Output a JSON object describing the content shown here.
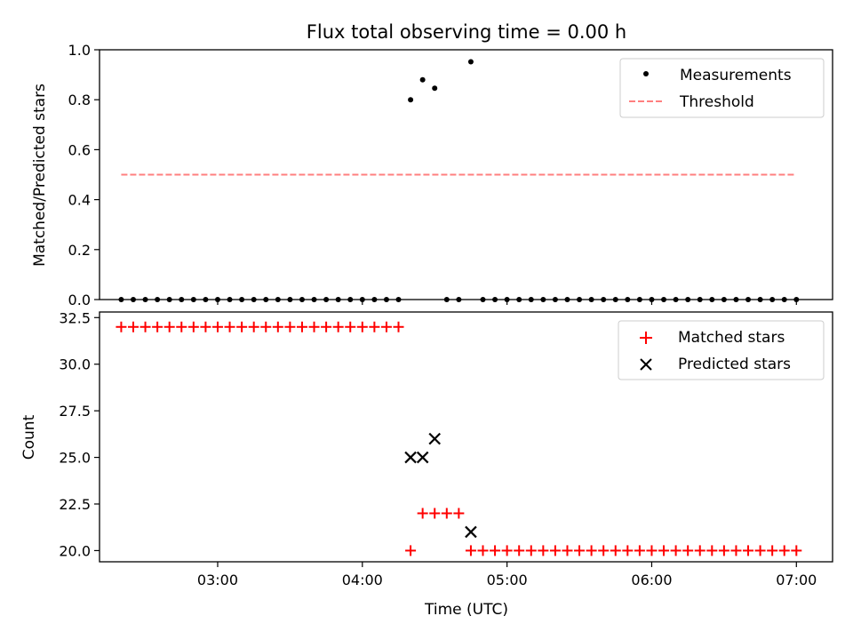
{
  "figure": {
    "title": "Flux total observing time = 0.00 h"
  },
  "chart_data": [
    {
      "type": "scatter",
      "ylabel": "Matched/Predicted stars",
      "xlabel": "",
      "xlim": [
        "02:11",
        "07:15"
      ],
      "ylim": [
        0.0,
        1.0
      ],
      "yticks": [
        "0.0",
        "0.2",
        "0.4",
        "0.6",
        "0.8",
        "1.0"
      ],
      "legend_position": "top-right",
      "series": [
        {
          "name": "Measurements",
          "kind": "scatter",
          "marker": "dot",
          "color": "#000000",
          "points": [
            [
              "02:20",
              0
            ],
            [
              "02:25",
              0
            ],
            [
              "02:30",
              0
            ],
            [
              "02:35",
              0
            ],
            [
              "02:40",
              0
            ],
            [
              "02:45",
              0
            ],
            [
              "02:50",
              0
            ],
            [
              "02:55",
              0
            ],
            [
              "03:00",
              0
            ],
            [
              "03:05",
              0
            ],
            [
              "03:10",
              0
            ],
            [
              "03:15",
              0
            ],
            [
              "03:20",
              0
            ],
            [
              "03:25",
              0
            ],
            [
              "03:30",
              0
            ],
            [
              "03:35",
              0
            ],
            [
              "03:40",
              0
            ],
            [
              "03:45",
              0
            ],
            [
              "03:50",
              0
            ],
            [
              "03:55",
              0
            ],
            [
              "04:00",
              0
            ],
            [
              "04:05",
              0
            ],
            [
              "04:10",
              0
            ],
            [
              "04:15",
              0
            ],
            [
              "04:20",
              0.8
            ],
            [
              "04:25",
              0.88
            ],
            [
              "04:30",
              0.846
            ],
            [
              "04:35",
              0
            ],
            [
              "04:40",
              0
            ],
            [
              "04:45",
              0.952
            ],
            [
              "04:50",
              0
            ],
            [
              "04:55",
              0
            ],
            [
              "05:00",
              0
            ],
            [
              "05:05",
              0
            ],
            [
              "05:10",
              0
            ],
            [
              "05:15",
              0
            ],
            [
              "05:20",
              0
            ],
            [
              "05:25",
              0
            ],
            [
              "05:30",
              0
            ],
            [
              "05:35",
              0
            ],
            [
              "05:40",
              0
            ],
            [
              "05:45",
              0
            ],
            [
              "05:50",
              0
            ],
            [
              "05:55",
              0
            ],
            [
              "06:00",
              0
            ],
            [
              "06:05",
              0
            ],
            [
              "06:10",
              0
            ],
            [
              "06:15",
              0
            ],
            [
              "06:20",
              0
            ],
            [
              "06:25",
              0
            ],
            [
              "06:30",
              0
            ],
            [
              "06:35",
              0
            ],
            [
              "06:40",
              0
            ],
            [
              "06:45",
              0
            ],
            [
              "06:50",
              0
            ],
            [
              "06:55",
              0
            ],
            [
              "07:00",
              0
            ]
          ]
        },
        {
          "name": "Threshold",
          "kind": "line",
          "style": "dashed",
          "color": "#ff7f7f",
          "points": [
            [
              "02:20",
              0.5
            ],
            [
              "07:00",
              0.5
            ]
          ]
        }
      ]
    },
    {
      "type": "scatter",
      "ylabel": "Count",
      "xlabel": "Time (UTC)",
      "xlim": [
        "02:11",
        "07:15"
      ],
      "ylim": [
        19.4,
        32.8
      ],
      "xticks": [
        "03:00",
        "04:00",
        "05:00",
        "06:00",
        "07:00"
      ],
      "yticks": [
        "20.0",
        "22.5",
        "25.0",
        "27.5",
        "30.0",
        "32.5"
      ],
      "legend_position": "top-right",
      "series": [
        {
          "name": "Matched stars",
          "kind": "scatter",
          "marker": "plus",
          "color": "#ff0000",
          "points": [
            [
              "02:20",
              32
            ],
            [
              "02:25",
              32
            ],
            [
              "02:30",
              32
            ],
            [
              "02:35",
              32
            ],
            [
              "02:40",
              32
            ],
            [
              "02:45",
              32
            ],
            [
              "02:50",
              32
            ],
            [
              "02:55",
              32
            ],
            [
              "03:00",
              32
            ],
            [
              "03:05",
              32
            ],
            [
              "03:10",
              32
            ],
            [
              "03:15",
              32
            ],
            [
              "03:20",
              32
            ],
            [
              "03:25",
              32
            ],
            [
              "03:30",
              32
            ],
            [
              "03:35",
              32
            ],
            [
              "03:40",
              32
            ],
            [
              "03:45",
              32
            ],
            [
              "03:50",
              32
            ],
            [
              "03:55",
              32
            ],
            [
              "04:00",
              32
            ],
            [
              "04:05",
              32
            ],
            [
              "04:10",
              32
            ],
            [
              "04:15",
              32
            ],
            [
              "04:20",
              20
            ],
            [
              "04:25",
              22
            ],
            [
              "04:30",
              22
            ],
            [
              "04:35",
              22
            ],
            [
              "04:40",
              22
            ],
            [
              "04:45",
              20
            ],
            [
              "04:50",
              20
            ],
            [
              "04:55",
              20
            ],
            [
              "05:00",
              20
            ],
            [
              "05:05",
              20
            ],
            [
              "05:10",
              20
            ],
            [
              "05:15",
              20
            ],
            [
              "05:20",
              20
            ],
            [
              "05:25",
              20
            ],
            [
              "05:30",
              20
            ],
            [
              "05:35",
              20
            ],
            [
              "05:40",
              20
            ],
            [
              "05:45",
              20
            ],
            [
              "05:50",
              20
            ],
            [
              "05:55",
              20
            ],
            [
              "06:00",
              20
            ],
            [
              "06:05",
              20
            ],
            [
              "06:10",
              20
            ],
            [
              "06:15",
              20
            ],
            [
              "06:20",
              20
            ],
            [
              "06:25",
              20
            ],
            [
              "06:30",
              20
            ],
            [
              "06:35",
              20
            ],
            [
              "06:40",
              20
            ],
            [
              "06:45",
              20
            ],
            [
              "06:50",
              20
            ],
            [
              "06:55",
              20
            ],
            [
              "07:00",
              20
            ]
          ]
        },
        {
          "name": "Predicted stars",
          "kind": "scatter",
          "marker": "x",
          "color": "#000000",
          "points": [
            [
              "04:20",
              25
            ],
            [
              "04:25",
              25
            ],
            [
              "04:30",
              26
            ],
            [
              "04:45",
              21
            ]
          ]
        }
      ]
    }
  ]
}
